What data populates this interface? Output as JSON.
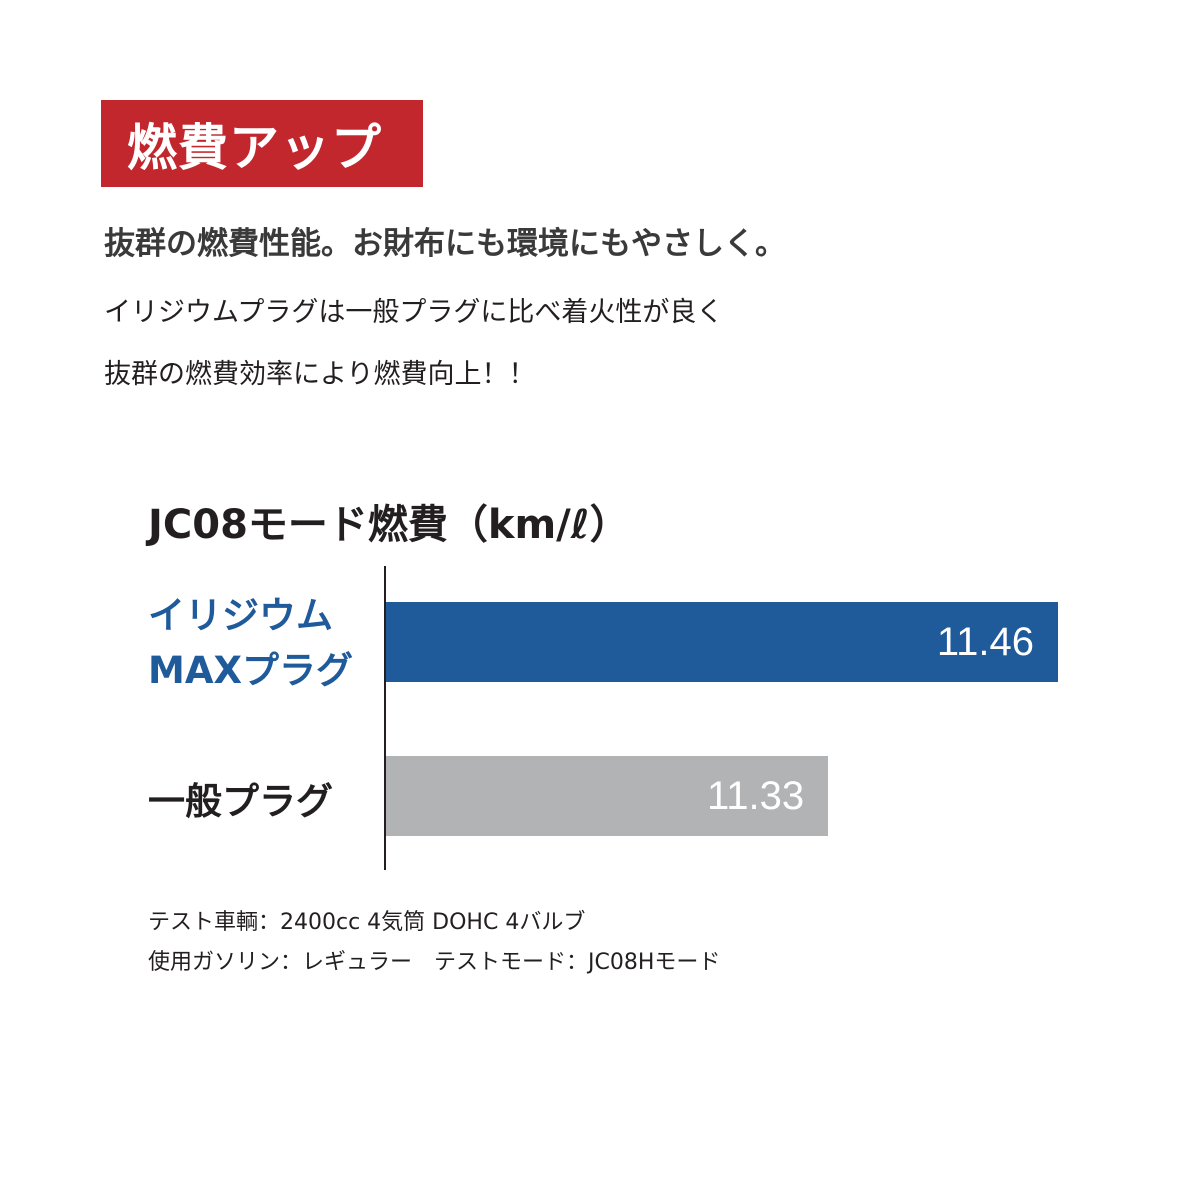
{
  "badge": "燃費アップ",
  "headline": "抜群の燃費性能。お財布にも環境にもやさしく。",
  "body": [
    "イリジウムプラグは一般プラグに比べ着火性が良く",
    "抜群の燃費効率により燃費向上！！"
  ],
  "colors": {
    "badge": "#c1272d",
    "iridium": "#1f5a9a",
    "standard": "#b2b3b5"
  },
  "chart_data": {
    "type": "bar",
    "orientation": "horizontal",
    "title": "JC08モード燃費（km/ℓ）",
    "categories": [
      {
        "lines": [
          "イリジウム",
          "MAXプラグ"
        ],
        "color": "#1f5a9a"
      },
      {
        "lines": [
          "一般プラグ"
        ],
        "color": "#231f20"
      }
    ],
    "values": [
      11.46,
      11.33
    ],
    "value_labels": [
      "11.46",
      "11.33"
    ],
    "bar_colors": [
      "#1f5a9a",
      "#b2b3b5"
    ],
    "xlim": [
      11.08,
      11.46
    ],
    "grid": false
  },
  "notes": [
    "テスト車輌：2400cc 4気筒 DOHC 4バルブ",
    "使用ガソリン：レギュラー　テストモード：JC08Hモード"
  ]
}
